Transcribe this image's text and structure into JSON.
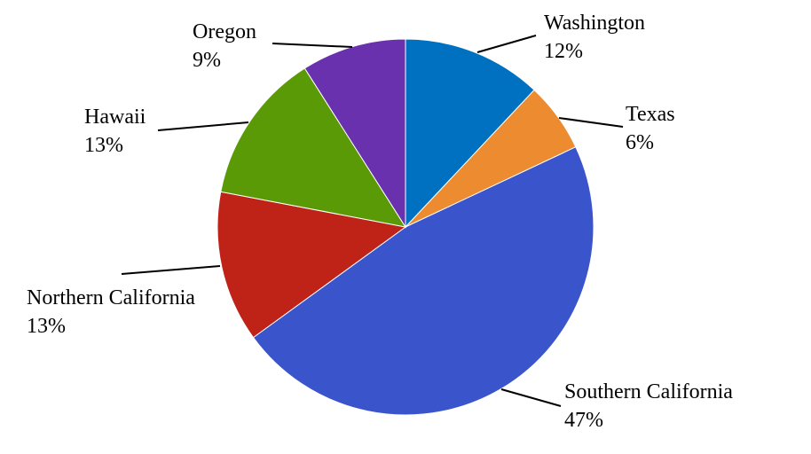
{
  "chart_data": {
    "type": "pie",
    "title": "",
    "start_angle_deg": 0,
    "direction": "clockwise",
    "legend": "none",
    "slices": [
      {
        "label": "Washington",
        "value": 12,
        "value_label": "12%",
        "color": "#0070C0"
      },
      {
        "label": "Texas",
        "value": 6,
        "value_label": "6%",
        "color": "#ED8B30"
      },
      {
        "label": "Southern California",
        "value": 47,
        "value_label": "47%",
        "color": "#3A55CC"
      },
      {
        "label": "Northern California",
        "value": 13,
        "value_label": "13%",
        "color": "#BF2317"
      },
      {
        "label": "Hawaii",
        "value": 13,
        "value_label": "13%",
        "color": "#5B9A07"
      },
      {
        "label": "Oregon",
        "value": 9,
        "value_label": "9%",
        "color": "#6A31AF"
      }
    ]
  }
}
